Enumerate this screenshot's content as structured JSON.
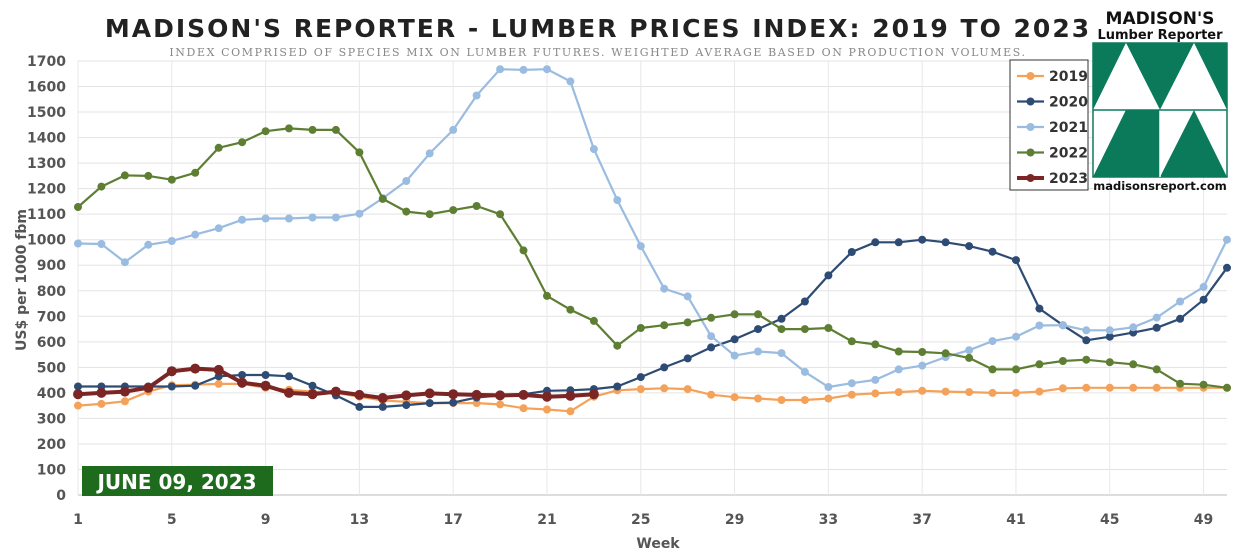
{
  "chart_data": {
    "type": "line",
    "title": "MADISON'S REPORTER - LUMBER PRICES INDEX: 2019 TO 2023",
    "subtitle": "INDEX COMPRISED OF SPECIES MIX ON LUMBER FUTURES. WEIGHTED AVERAGE BASED ON PRODUCTION VOLUMES.",
    "xlabel": "Week",
    "ylabel": "US$ per 1000 fbm",
    "xlim": [
      1,
      50
    ],
    "ylim": [
      0,
      1700
    ],
    "x_ticks": [
      1,
      5,
      9,
      13,
      17,
      21,
      25,
      29,
      33,
      37,
      41,
      45,
      49
    ],
    "y_ticks": [
      0,
      100,
      200,
      300,
      400,
      500,
      600,
      700,
      800,
      900,
      1000,
      1100,
      1200,
      1300,
      1400,
      1500,
      1600,
      1700
    ],
    "grid": "horizontal and vertical",
    "legend_position": "top-right",
    "series": [
      {
        "name": "2019",
        "color": "#F4A259",
        "x": [
          1,
          2,
          3,
          4,
          5,
          6,
          7,
          8,
          9,
          10,
          11,
          12,
          13,
          14,
          15,
          16,
          17,
          18,
          19,
          20,
          21,
          22,
          23,
          24,
          25,
          26,
          27,
          28,
          29,
          30,
          31,
          32,
          33,
          34,
          35,
          36,
          37,
          38,
          39,
          40,
          41,
          42,
          43,
          44,
          45,
          46,
          47,
          48,
          49,
          50
        ],
        "values": [
          350,
          357,
          367,
          405,
          430,
          432,
          435,
          435,
          420,
          412,
          405,
          400,
          385,
          370,
          365,
          360,
          360,
          360,
          355,
          340,
          335,
          328,
          385,
          410,
          415,
          418,
          415,
          393,
          383,
          378,
          372,
          372,
          378,
          393,
          398,
          403,
          408,
          405,
          403,
          400,
          400,
          405,
          418,
          420,
          420,
          420,
          420,
          420,
          420,
          420
        ]
      },
      {
        "name": "2020",
        "color": "#2D4B73",
        "x": [
          1,
          2,
          3,
          4,
          5,
          6,
          7,
          8,
          9,
          10,
          11,
          12,
          13,
          14,
          15,
          16,
          17,
          18,
          19,
          20,
          21,
          22,
          23,
          24,
          25,
          26,
          27,
          28,
          29,
          30,
          31,
          32,
          33,
          34,
          35,
          36,
          37,
          38,
          39,
          40,
          41,
          42,
          43,
          44,
          45,
          46,
          47,
          48,
          49,
          50
        ],
        "values": [
          425,
          425,
          425,
          425,
          425,
          428,
          465,
          470,
          470,
          465,
          428,
          390,
          345,
          345,
          352,
          360,
          362,
          382,
          390,
          395,
          408,
          410,
          415,
          425,
          462,
          500,
          535,
          578,
          610,
          650,
          690,
          758,
          860,
          952,
          990,
          990,
          1000,
          990,
          975,
          953,
          920,
          730,
          665,
          606,
          620,
          636,
          655,
          690,
          765,
          890
        ]
      },
      {
        "name": "2021",
        "color": "#9ABCE0",
        "x": [
          1,
          2,
          3,
          4,
          5,
          6,
          7,
          8,
          9,
          10,
          11,
          12,
          13,
          14,
          15,
          16,
          17,
          18,
          19,
          20,
          21,
          22,
          23,
          24,
          25,
          26,
          27,
          28,
          29,
          30,
          31,
          32,
          33,
          34,
          35,
          36,
          37,
          38,
          39,
          40,
          41,
          42,
          43,
          44,
          45,
          46,
          47,
          48,
          49,
          50
        ],
        "values": [
          985,
          983,
          912,
          980,
          995,
          1020,
          1045,
          1078,
          1083,
          1083,
          1087,
          1087,
          1102,
          1162,
          1230,
          1338,
          1430,
          1565,
          1668,
          1665,
          1668,
          1620,
          1355,
          1155,
          975,
          808,
          778,
          622,
          546,
          562,
          556,
          482,
          423,
          438,
          451,
          492,
          507,
          540,
          567,
          603,
          620,
          664,
          665,
          645,
          645,
          657,
          695,
          758,
          815,
          1000
        ]
      },
      {
        "name": "2022",
        "color": "#5E7E34",
        "x": [
          1,
          2,
          3,
          4,
          5,
          6,
          7,
          8,
          9,
          10,
          11,
          12,
          13,
          14,
          15,
          16,
          17,
          18,
          19,
          20,
          21,
          22,
          23,
          24,
          25,
          26,
          27,
          28,
          29,
          30,
          31,
          32,
          33,
          34,
          35,
          36,
          37,
          38,
          39,
          40,
          41,
          42,
          43,
          44,
          45,
          46,
          47,
          48,
          49,
          50
        ],
        "values": [
          1128,
          1208,
          1252,
          1250,
          1235,
          1262,
          1360,
          1382,
          1425,
          1436,
          1430,
          1430,
          1342,
          1160,
          1110,
          1100,
          1116,
          1132,
          1100,
          958,
          780,
          726,
          682,
          585,
          654,
          665,
          676,
          694,
          708,
          708,
          650,
          650,
          654,
          602,
          590,
          562,
          560,
          555,
          537,
          492,
          492,
          512,
          525,
          530,
          520,
          512,
          492,
          436,
          432,
          420
        ]
      },
      {
        "name": "2023",
        "color": "#7B2525",
        "x": [
          1,
          2,
          3,
          4,
          5,
          6,
          7,
          8,
          9,
          10,
          11,
          12,
          13,
          14,
          15,
          16,
          17,
          18,
          19,
          20,
          21,
          22,
          23
        ],
        "values": [
          395,
          400,
          405,
          420,
          485,
          495,
          490,
          440,
          428,
          400,
          395,
          405,
          392,
          380,
          390,
          398,
          395,
          392,
          390,
          392,
          385,
          388,
          395
        ]
      }
    ]
  },
  "date_badge": {
    "label": "JUNE 09, 2023",
    "color": "#1E6B1E"
  },
  "logo": {
    "line1": "MADISON'S",
    "line2": "Lumber Reporter",
    "url": "madisonsreport.com",
    "color": "#0B7A5B"
  }
}
